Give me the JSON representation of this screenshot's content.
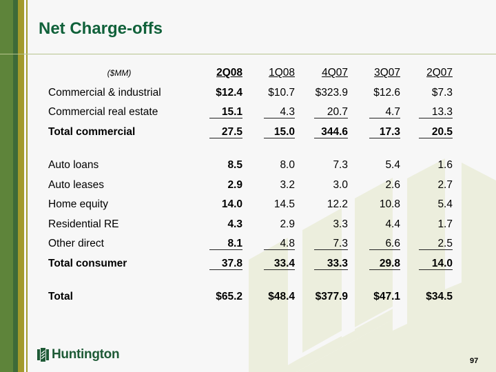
{
  "slide": {
    "title": "Net Charge-offs",
    "page_number": "97",
    "logo_text": "Huntington",
    "colors": {
      "title_green": "#10613a",
      "sidebar_green": "#5e843a",
      "sidebar_dark_green": "#3e6a38",
      "sidebar_olive": "#a29a2c",
      "watermark": "#eceedd"
    }
  },
  "table": {
    "unit_label": "($MM)",
    "columns": [
      "2Q08",
      "1Q08",
      "4Q07",
      "3Q07",
      "2Q07"
    ],
    "rows": [
      {
        "label": "Commercial & industrial",
        "bold": false,
        "underline": false,
        "values": [
          "$12.4",
          "$10.7",
          "$323.9",
          "$12.6",
          "$7.3"
        ]
      },
      {
        "label": "Commercial real estate",
        "bold": false,
        "underline": true,
        "values": [
          "15.1",
          "4.3",
          "20.7",
          "4.7",
          "13.3"
        ]
      },
      {
        "label": "Total commercial",
        "bold": true,
        "underline": true,
        "values": [
          "27.5",
          "15.0",
          "344.6",
          "17.3",
          "20.5"
        ]
      },
      {
        "label": "Auto loans",
        "bold": false,
        "underline": false,
        "values": [
          "8.5",
          "8.0",
          "7.3",
          "5.4",
          "1.6"
        ]
      },
      {
        "label": "Auto leases",
        "bold": false,
        "underline": false,
        "values": [
          "2.9",
          "3.2",
          "3.0",
          "2.6",
          "2.7"
        ]
      },
      {
        "label": "Home equity",
        "bold": false,
        "underline": false,
        "values": [
          "14.0",
          "14.5",
          "12.2",
          "10.8",
          "5.4"
        ]
      },
      {
        "label": "Residential RE",
        "bold": false,
        "underline": false,
        "values": [
          "4.3",
          "2.9",
          "3.3",
          "4.4",
          "1.7"
        ]
      },
      {
        "label": "Other direct",
        "bold": false,
        "underline": true,
        "values": [
          "8.1",
          "4.8",
          "7.3",
          "6.6",
          "2.5"
        ]
      },
      {
        "label": "Total consumer",
        "bold": true,
        "underline": true,
        "values": [
          "37.8",
          "33.4",
          "33.3",
          "29.8",
          "14.0"
        ]
      },
      {
        "label": "Total",
        "bold": true,
        "underline": false,
        "values": [
          "$65.2",
          "$48.4",
          "$377.9",
          "$47.1",
          "$34.5"
        ]
      }
    ]
  }
}
